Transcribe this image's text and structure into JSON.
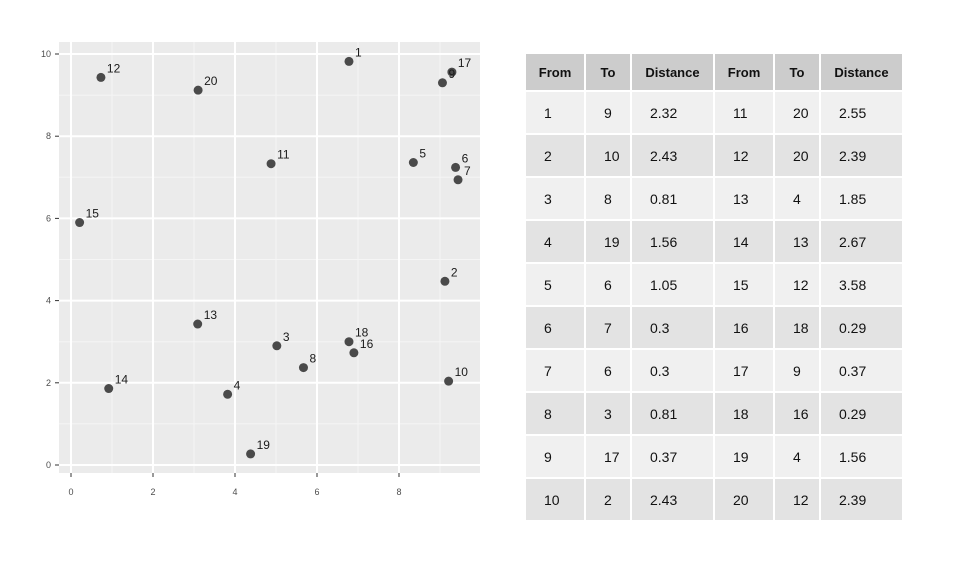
{
  "chart_data": [
    {
      "type": "scatter",
      "xlim": [
        0,
        9.8
      ],
      "ylim": [
        0,
        10
      ],
      "x_ticks": [
        "0",
        "2",
        "4",
        "6",
        "8"
      ],
      "y_ticks": [
        "0",
        "2",
        "4",
        "6",
        "8",
        "10"
      ],
      "grid": true,
      "points": [
        {
          "label": "1",
          "x": 6.78,
          "y": 9.82
        },
        {
          "label": "2",
          "x": 9.12,
          "y": 4.47
        },
        {
          "label": "3",
          "x": 5.02,
          "y": 2.9
        },
        {
          "label": "4",
          "x": 3.82,
          "y": 1.72
        },
        {
          "label": "5",
          "x": 8.35,
          "y": 7.36
        },
        {
          "label": "6",
          "x": 9.38,
          "y": 7.24
        },
        {
          "label": "7",
          "x": 9.44,
          "y": 6.94
        },
        {
          "label": "8",
          "x": 5.67,
          "y": 2.37
        },
        {
          "label": "9",
          "x": 9.06,
          "y": 9.3
        },
        {
          "label": "10",
          "x": 9.21,
          "y": 2.04
        },
        {
          "label": "11",
          "x": 4.88,
          "y": 7.33
        },
        {
          "label": "12",
          "x": 0.73,
          "y": 9.43
        },
        {
          "label": "13",
          "x": 3.09,
          "y": 3.43
        },
        {
          "label": "14",
          "x": 0.92,
          "y": 1.86
        },
        {
          "label": "15",
          "x": 0.21,
          "y": 5.9
        },
        {
          "label": "16",
          "x": 6.9,
          "y": 2.73
        },
        {
          "label": "17",
          "x": 9.29,
          "y": 9.56
        },
        {
          "label": "18",
          "x": 6.78,
          "y": 3.0
        },
        {
          "label": "19",
          "x": 4.38,
          "y": 0.27
        },
        {
          "label": "20",
          "x": 3.1,
          "y": 9.12
        }
      ]
    },
    {
      "type": "table",
      "columns": [
        "From",
        "To",
        "Distance",
        "From",
        "To",
        "Distance"
      ],
      "rows": [
        [
          "1",
          "9",
          "2.32",
          "11",
          "20",
          "2.55"
        ],
        [
          "2",
          "10",
          "2.43",
          "12",
          "20",
          "2.39"
        ],
        [
          "3",
          "8",
          "0.81",
          "13",
          "4",
          "1.85"
        ],
        [
          "4",
          "19",
          "1.56",
          "14",
          "13",
          "2.67"
        ],
        [
          "5",
          "6",
          "1.05",
          "15",
          "12",
          "3.58"
        ],
        [
          "6",
          "7",
          "0.3",
          "16",
          "18",
          "0.29"
        ],
        [
          "7",
          "6",
          "0.3",
          "17",
          "9",
          "0.37"
        ],
        [
          "8",
          "3",
          "0.81",
          "18",
          "16",
          "0.29"
        ],
        [
          "9",
          "17",
          "0.37",
          "19",
          "4",
          "1.56"
        ],
        [
          "10",
          "2",
          "2.43",
          "20",
          "12",
          "2.39"
        ]
      ]
    }
  ],
  "colors": {
    "panel_bg": "#ebebeb",
    "grid_major": "#ffffff",
    "grid_minor": "#f5f5f5",
    "point": "#4a4a4a",
    "header_bg": "#cccccc",
    "row_light": "#f0f0f0",
    "row_dark": "#e3e3e3"
  }
}
